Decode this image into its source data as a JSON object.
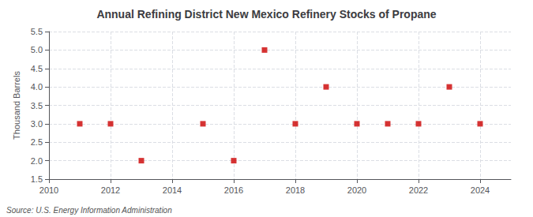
{
  "chart_data": {
    "type": "scatter",
    "title": "Annual Refining District New Mexico Refinery Stocks of Propane",
    "ylabel": "Thousand Barrels",
    "source": "Source: U.S. Energy Information Administration",
    "x": [
      2011,
      2012,
      2013,
      2015,
      2016,
      2017,
      2018,
      2019,
      2020,
      2021,
      2022,
      2023,
      2024
    ],
    "values": [
      3.0,
      3.0,
      2.0,
      3.0,
      2.0,
      5.0,
      3.0,
      4.0,
      3.0,
      3.0,
      3.0,
      4.0,
      3.0
    ],
    "color": "#cc0000",
    "marker": "square",
    "xlim": [
      2010,
      2025
    ],
    "ylim": [
      1.5,
      5.5
    ],
    "xticks": [
      2010,
      2012,
      2014,
      2016,
      2018,
      2020,
      2022,
      2024
    ],
    "yticks": [
      1.5,
      {
        "value": 2.0,
        "label": "2.0"
      },
      2.5,
      {
        "value": 3.0,
        "label": "3.0"
      },
      3.5,
      {
        "value": 4.0,
        "label": "4.0"
      },
      4.5,
      {
        "value": 5.0,
        "label": "5.0"
      },
      5.5
    ],
    "grid": true
  }
}
